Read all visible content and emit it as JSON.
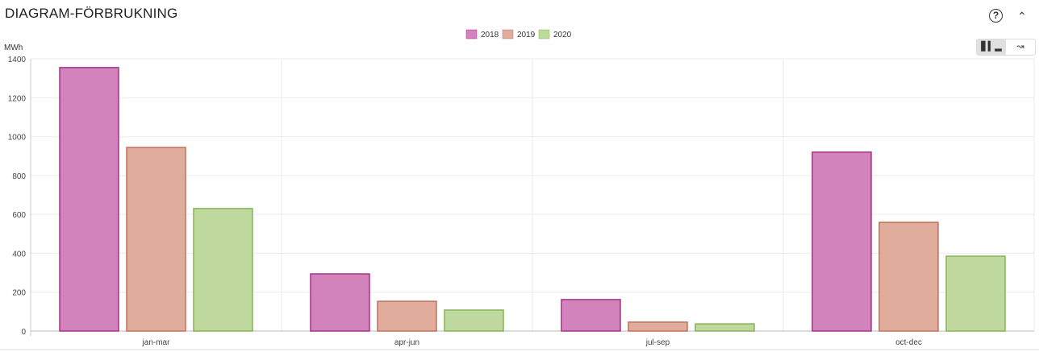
{
  "header": {
    "title": "DIAGRAM-FÖRBRUKNING",
    "help_icon": "question-circle-icon",
    "collapse_icon": "chevron-up-icon"
  },
  "toggle": {
    "bar_icon": "bar-chart-icon",
    "line_icon": "line-chart-icon",
    "active": "bar"
  },
  "chart_data": {
    "type": "bar",
    "ylabel": "MWh",
    "categories": [
      "jan-mar",
      "apr-jun",
      "jul-sep",
      "oct-dec"
    ],
    "ylim": [
      0,
      1400
    ],
    "yticks": [
      0,
      200,
      400,
      600,
      800,
      1000,
      1200,
      1400
    ],
    "grid": true,
    "legend": "top-center",
    "series": [
      {
        "name": "2018",
        "values": [
          1355,
          294,
          162,
          920
        ],
        "fill": "#d383bc",
        "stroke": "#a8308a"
      },
      {
        "name": "2019",
        "values": [
          944,
          153,
          46,
          559
        ],
        "fill": "#e0ad9c",
        "stroke": "#c2705a"
      },
      {
        "name": "2020",
        "values": [
          630,
          108,
          37,
          385
        ],
        "fill": "#bed89e",
        "stroke": "#86b456"
      }
    ]
  }
}
